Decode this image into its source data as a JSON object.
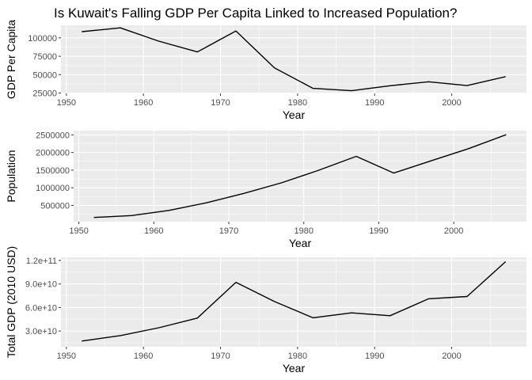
{
  "title": "Is Kuwait's Falling GDP Per Capita Linked to Increased Population?",
  "chart_data": [
    {
      "type": "line",
      "title": "",
      "xlabel": "Year",
      "ylabel": "GDP Per Capita",
      "xlim": [
        1949.3,
        2009.7
      ],
      "ylim": [
        24500,
        117000
      ],
      "grid": true,
      "x_ticks": [
        1950,
        1960,
        1970,
        1980,
        1990,
        2000
      ],
      "y_ticks": [
        25000,
        50000,
        75000,
        100000
      ],
      "y_tick_labels": [
        "25000",
        "50000",
        "75000",
        "100000"
      ],
      "x": [
        1952,
        1957,
        1962,
        1967,
        1972,
        1977,
        1982,
        1987,
        1992,
        1997,
        2002,
        2007
      ],
      "y": [
        108382,
        113523,
        95458,
        80895,
        109348,
        59265,
        31354,
        28118,
        34933,
        40301,
        35110,
        47307
      ]
    },
    {
      "type": "line",
      "title": "",
      "xlabel": "Year",
      "ylabel": "Population",
      "xlim": [
        1949.3,
        2009.7
      ],
      "ylim": [
        40000,
        2620000
      ],
      "grid": true,
      "x_ticks": [
        1950,
        1960,
        1970,
        1980,
        1990,
        2000
      ],
      "y_ticks": [
        500000,
        1000000,
        1500000,
        2000000,
        2500000
      ],
      "y_tick_labels": [
        "500000",
        "1000000",
        "1500000",
        "2000000",
        "2500000"
      ],
      "x": [
        1952,
        1957,
        1962,
        1967,
        1972,
        1977,
        1982,
        1987,
        1992,
        1997,
        2002,
        2007
      ],
      "y": [
        160000,
        212846,
        358266,
        575003,
        841934,
        1140357,
        1497494,
        1891487,
        1418095,
        1765345,
        2111561,
        2505559
      ]
    },
    {
      "type": "line",
      "title": "",
      "xlabel": "Year",
      "ylabel": "Total GDP (2010 USD)",
      "xlim": [
        1949.3,
        2009.7
      ],
      "ylim": [
        10000000000,
        124000000000
      ],
      "grid": true,
      "x_ticks": [
        1950,
        1960,
        1970,
        1980,
        1990,
        2000
      ],
      "y_ticks": [
        30000000000,
        60000000000,
        90000000000,
        120000000000
      ],
      "y_tick_labels": [
        "3.0e+10",
        "6.0e+10",
        "9.0e+10",
        "1.2e+11"
      ],
      "x": [
        1952,
        1957,
        1962,
        1967,
        1972,
        1977,
        1982,
        1987,
        1992,
        1997,
        2002,
        2007
      ],
      "y": [
        17300000000,
        24200000000,
        34200000000,
        46500000000,
        92100000000,
        67600000000,
        46900000000,
        53200000000,
        49500000000,
        71100000000,
        74100000000,
        118500000000
      ]
    }
  ]
}
